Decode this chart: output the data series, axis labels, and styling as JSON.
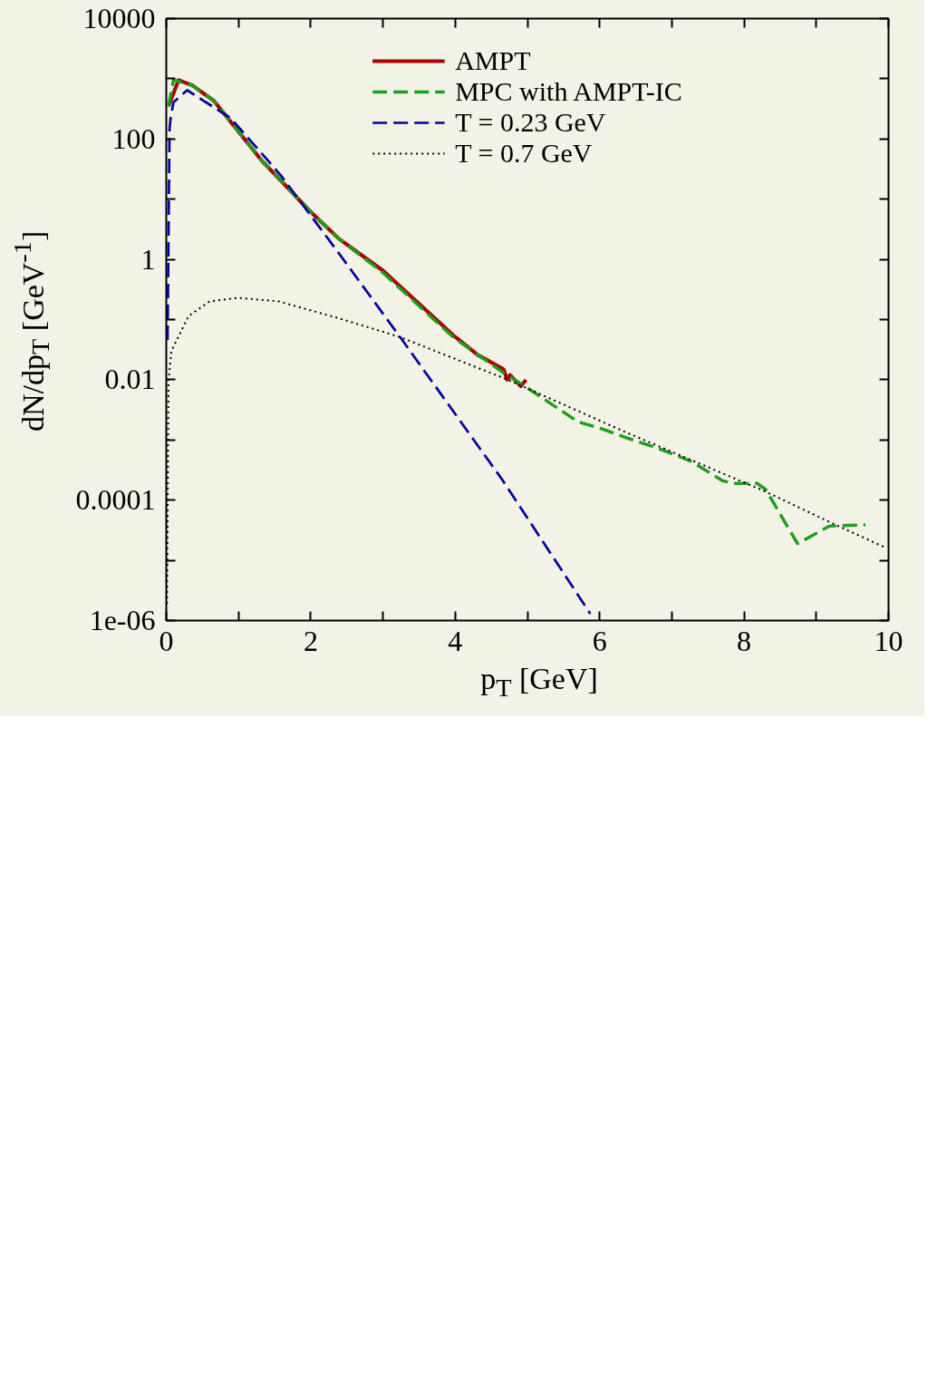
{
  "chart_data": {
    "type": "line",
    "xlabel": "p$_{T}$ [GeV]",
    "ylabel": "dN/dp$_{T}$ [GeV$^{-1}$]",
    "log": "y",
    "legend": "top",
    "xlim": [
      0,
      10
    ],
    "xticks": [
      0,
      {
        "value": 1,
        "label": null
      },
      2,
      {
        "value": 3,
        "label": null
      },
      4,
      {
        "value": 5,
        "label": null
      },
      6,
      {
        "value": 7,
        "label": null
      },
      8,
      {
        "value": 9,
        "label": null
      },
      10
    ],
    "ylim": [
      1e-06,
      10000
    ],
    "yticks": [
      {
        "value": 1e-06,
        "label": "1e-06"
      },
      {
        "value": 1e-05,
        "label": null
      },
      0.0001,
      {
        "value": 0.001,
        "label": null
      },
      0.01,
      {
        "value": 0.1,
        "label": null
      },
      1,
      {
        "value": 10,
        "label": null
      },
      100,
      {
        "value": 1000,
        "label": null
      },
      10000
    ],
    "series": [
      {
        "name": "AMPT",
        "color": "#aa0000",
        "line_style": "solid",
        "x": [
          0.03,
          0.17,
          0.36,
          0.66,
          1.32,
          1.99,
          2.39,
          3.0,
          3.98,
          4.31,
          4.67,
          4.72,
          4.76,
          4.91,
          4.98
        ],
        "values": [
          350,
          950,
          780,
          430,
          44,
          6.3,
          2.2,
          0.65,
          0.054,
          0.026,
          0.015,
          0.01,
          0.012,
          0.0078,
          0.01
        ]
      },
      {
        "name": "MPC with AMPT-IC",
        "color": "#1aa01a",
        "line_style": "dashed",
        "x": [
          0.03,
          0.1,
          0.36,
          0.66,
          1.32,
          1.99,
          2.39,
          3.0,
          3.98,
          4.67,
          4.98,
          5.7,
          6.05,
          6.36,
          6.82,
          7.27,
          7.7,
          7.86,
          8.18,
          8.3,
          8.74,
          9.18,
          9.68
        ],
        "values": [
          350,
          950,
          780,
          430,
          44,
          6.3,
          2.2,
          0.6,
          0.05,
          0.013,
          0.0076,
          0.002,
          0.0015,
          0.0011,
          0.00072,
          0.00044,
          0.00021,
          0.00019,
          0.00019,
          0.00015,
          1.9e-05,
          3.7e-05,
          3.9e-05
        ]
      },
      {
        "name": "T = 0.23 GeV",
        "color": "#0000a0",
        "line_style": "dashed",
        "x": [
          0.018,
          0.045,
          0.06,
          0.1,
          0.29,
          0.51,
          0.89,
          1.59,
          2.39,
          3.26,
          4.65,
          5.87
        ],
        "values": [
          0.046,
          145,
          224,
          407,
          646,
          436,
          224,
          24.5,
          1.26,
          0.047,
          0.00022,
          1.3e-06
        ]
      },
      {
        "name": "T = 0.7 GeV",
        "color": "#000000",
        "line_style": "dotted",
        "x": [
          0.01,
          0.03,
          0.07,
          0.31,
          0.6,
          0.99,
          1.56,
          2.39,
          3.24,
          4.73,
          6.39,
          8.29,
          9.19,
          9.97
        ],
        "values": [
          1.9e-06,
          0.0091,
          0.03,
          0.115,
          0.2,
          0.23,
          0.2,
          0.105,
          0.051,
          0.01,
          0.0013,
          0.00014,
          4.3e-05,
          1.6e-05
        ]
      }
    ]
  }
}
